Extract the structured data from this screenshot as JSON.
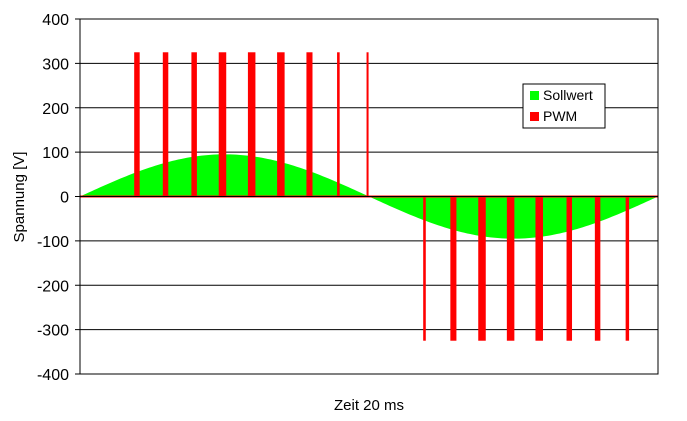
{
  "chart_data": {
    "type": "bar",
    "xlabel": "Zeit 20 ms",
    "ylabel": "Spannung [V]",
    "ylim": [
      -400,
      400
    ],
    "yticks": [
      400,
      300,
      200,
      100,
      0,
      -100,
      -200,
      -300,
      -400
    ],
    "ytick_labels": [
      "400",
      "300",
      "200",
      "100",
      "0",
      "-100",
      "-200",
      "-300",
      "-400"
    ],
    "grid": true,
    "legend_position": "top-right",
    "x_range_ms": [
      0,
      20
    ],
    "series": [
      {
        "name": "Sollwert",
        "type": "area",
        "color": "#00ff00",
        "amplitude": 95,
        "shape": "sine, one full period over the time axis"
      },
      {
        "name": "PWM",
        "type": "bar",
        "color": "#ff0000",
        "pulses": [
          {
            "t": 1.97,
            "width": 0.19,
            "value": 325
          },
          {
            "t": 2.96,
            "width": 0.19,
            "value": 325
          },
          {
            "t": 3.95,
            "width": 0.19,
            "value": 325
          },
          {
            "t": 4.93,
            "width": 0.26,
            "value": 325
          },
          {
            "t": 5.94,
            "width": 0.26,
            "value": 325
          },
          {
            "t": 6.95,
            "width": 0.26,
            "value": 325
          },
          {
            "t": 7.94,
            "width": 0.21,
            "value": 325
          },
          {
            "t": 8.94,
            "width": 0.09,
            "value": 325
          },
          {
            "t": 9.95,
            "width": 0.07,
            "value": 325
          },
          {
            "t": 11.92,
            "width": 0.09,
            "value": -325
          },
          {
            "t": 12.92,
            "width": 0.21,
            "value": -325
          },
          {
            "t": 13.91,
            "width": 0.26,
            "value": -325
          },
          {
            "t": 14.9,
            "width": 0.26,
            "value": -325
          },
          {
            "t": 15.89,
            "width": 0.26,
            "value": -325
          },
          {
            "t": 16.93,
            "width": 0.19,
            "value": -325
          },
          {
            "t": 17.91,
            "width": 0.19,
            "value": -325
          },
          {
            "t": 18.94,
            "width": 0.12,
            "value": -325
          }
        ]
      }
    ]
  }
}
